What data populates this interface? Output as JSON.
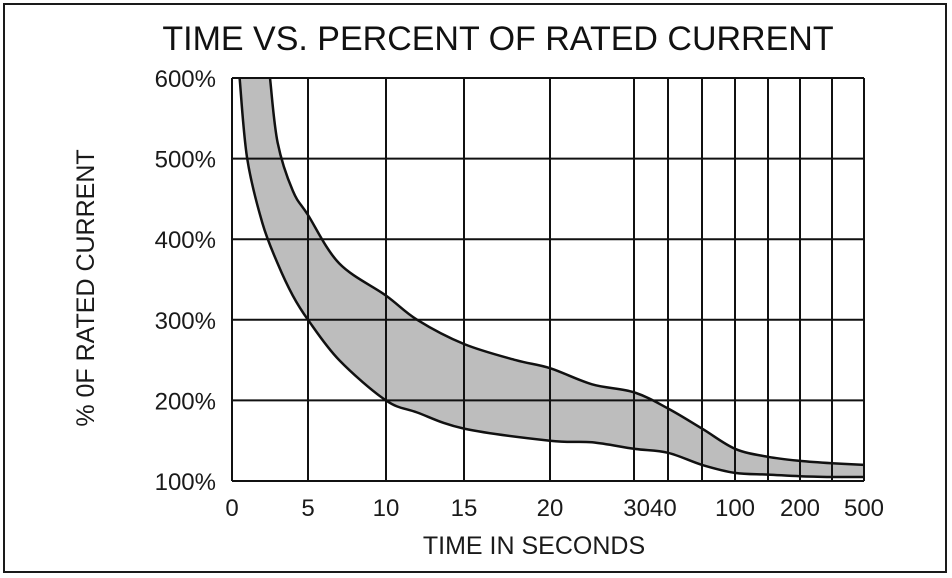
{
  "chart_data": {
    "type": "area",
    "title": "TIME VS. PERCENT OF RATED CURRENT",
    "xlabel": "TIME IN SECONDS",
    "ylabel": "% 0F RATED CURRENT",
    "x_ticks": [
      "0",
      "5",
      "10",
      "15",
      "20",
      "30",
      "40",
      "100",
      "200",
      "500"
    ],
    "y_ticks": [
      "600%",
      "500%",
      "400%",
      "300%",
      "200%",
      "100%"
    ],
    "ylim": [
      100,
      600
    ],
    "grid": true,
    "band_color": "#bdbdbd",
    "series": [
      {
        "role": "upper-bound",
        "x": [
          2.5,
          3,
          4,
          5,
          7,
          10,
          12,
          15,
          18,
          20,
          25,
          30,
          40,
          60,
          100,
          150,
          200,
          300,
          500
        ],
        "y": [
          600,
          520,
          460,
          430,
          370,
          330,
          300,
          270,
          250,
          240,
          220,
          210,
          190,
          165,
          140,
          130,
          125,
          122,
          120
        ]
      },
      {
        "role": "lower-bound",
        "x": [
          0.5,
          1,
          2,
          3,
          4,
          5,
          7,
          10,
          12,
          15,
          20,
          25,
          30,
          40,
          60,
          100,
          150,
          200,
          300,
          500
        ],
        "y": [
          600,
          500,
          420,
          370,
          330,
          300,
          250,
          200,
          185,
          165,
          150,
          148,
          140,
          135,
          120,
          110,
          108,
          106,
          105,
          105
        ]
      }
    ]
  }
}
